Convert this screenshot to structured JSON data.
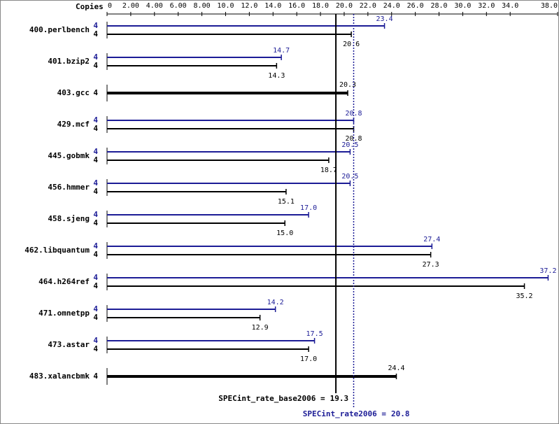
{
  "chart_data": {
    "type": "bar",
    "orientation": "horizontal",
    "axis_label": "Copies",
    "categories": [
      "400.perlbench",
      "401.bzip2",
      "403.gcc",
      "429.mcf",
      "445.gobmk",
      "456.hmmer",
      "458.sjeng",
      "462.libquantum",
      "464.h264ref",
      "471.omnetpp",
      "473.astar",
      "483.xalancbmk"
    ],
    "series": [
      {
        "color": "#1c1c96",
        "copies": [
          4,
          4,
          null,
          4,
          4,
          4,
          4,
          4,
          4,
          4,
          4,
          null
        ],
        "values": [
          23.4,
          14.7,
          null,
          20.8,
          20.5,
          20.5,
          17.0,
          27.4,
          37.2,
          14.2,
          17.5,
          null
        ],
        "value_labels": [
          "23.4",
          "14.7",
          null,
          "20.8",
          "20.5",
          "20.5",
          "17.0",
          "27.4",
          "37.2",
          "14.2",
          "17.5",
          null
        ]
      },
      {
        "color": "#000000",
        "copies": [
          4,
          4,
          4,
          4,
          4,
          4,
          4,
          4,
          4,
          4,
          4,
          4
        ],
        "values": [
          20.6,
          14.3,
          20.3,
          20.8,
          18.7,
          15.1,
          15.0,
          27.3,
          35.2,
          12.9,
          17.0,
          24.4
        ],
        "value_labels": [
          "20.6",
          "14.3",
          "20.3",
          "20.8",
          "18.7",
          "15.1",
          "15.0",
          "27.3",
          "35.2",
          "12.9",
          "17.0",
          "24.4"
        ]
      }
    ],
    "xlim": [
      0,
      38
    ],
    "xticks": [
      0,
      {
        "value": 2,
        "label": "2.00"
      },
      {
        "value": 4,
        "label": "4.00"
      },
      {
        "value": 6,
        "label": "6.00"
      },
      {
        "value": 8,
        "label": "8.00"
      },
      {
        "value": 10,
        "label": "10.0"
      },
      {
        "value": 12,
        "label": "12.0"
      },
      {
        "value": 14,
        "label": "14.0"
      },
      {
        "value": 16,
        "label": "16.0"
      },
      {
        "value": 18,
        "label": "18.0"
      },
      {
        "value": 20,
        "label": "20.0"
      },
      {
        "value": 22,
        "label": "22.0"
      },
      {
        "value": 24,
        "label": "24.0"
      },
      {
        "value": 26,
        "label": "26.0"
      },
      {
        "value": 28,
        "label": "28.0"
      },
      {
        "value": 30,
        "label": "30.0"
      },
      {
        "value": 32,
        "label": "32.0"
      },
      {
        "value": 34,
        "label": "34.0"
      },
      {
        "value": 38,
        "label": "38.0"
      }
    ],
    "reference_lines": [
      {
        "label": "SPECint_rate_base2006 =",
        "value": 19.3,
        "color": "#000000"
      },
      {
        "label": "SPECint_rate2006 =",
        "value": 20.8,
        "color": "#1c1c96"
      }
    ]
  }
}
